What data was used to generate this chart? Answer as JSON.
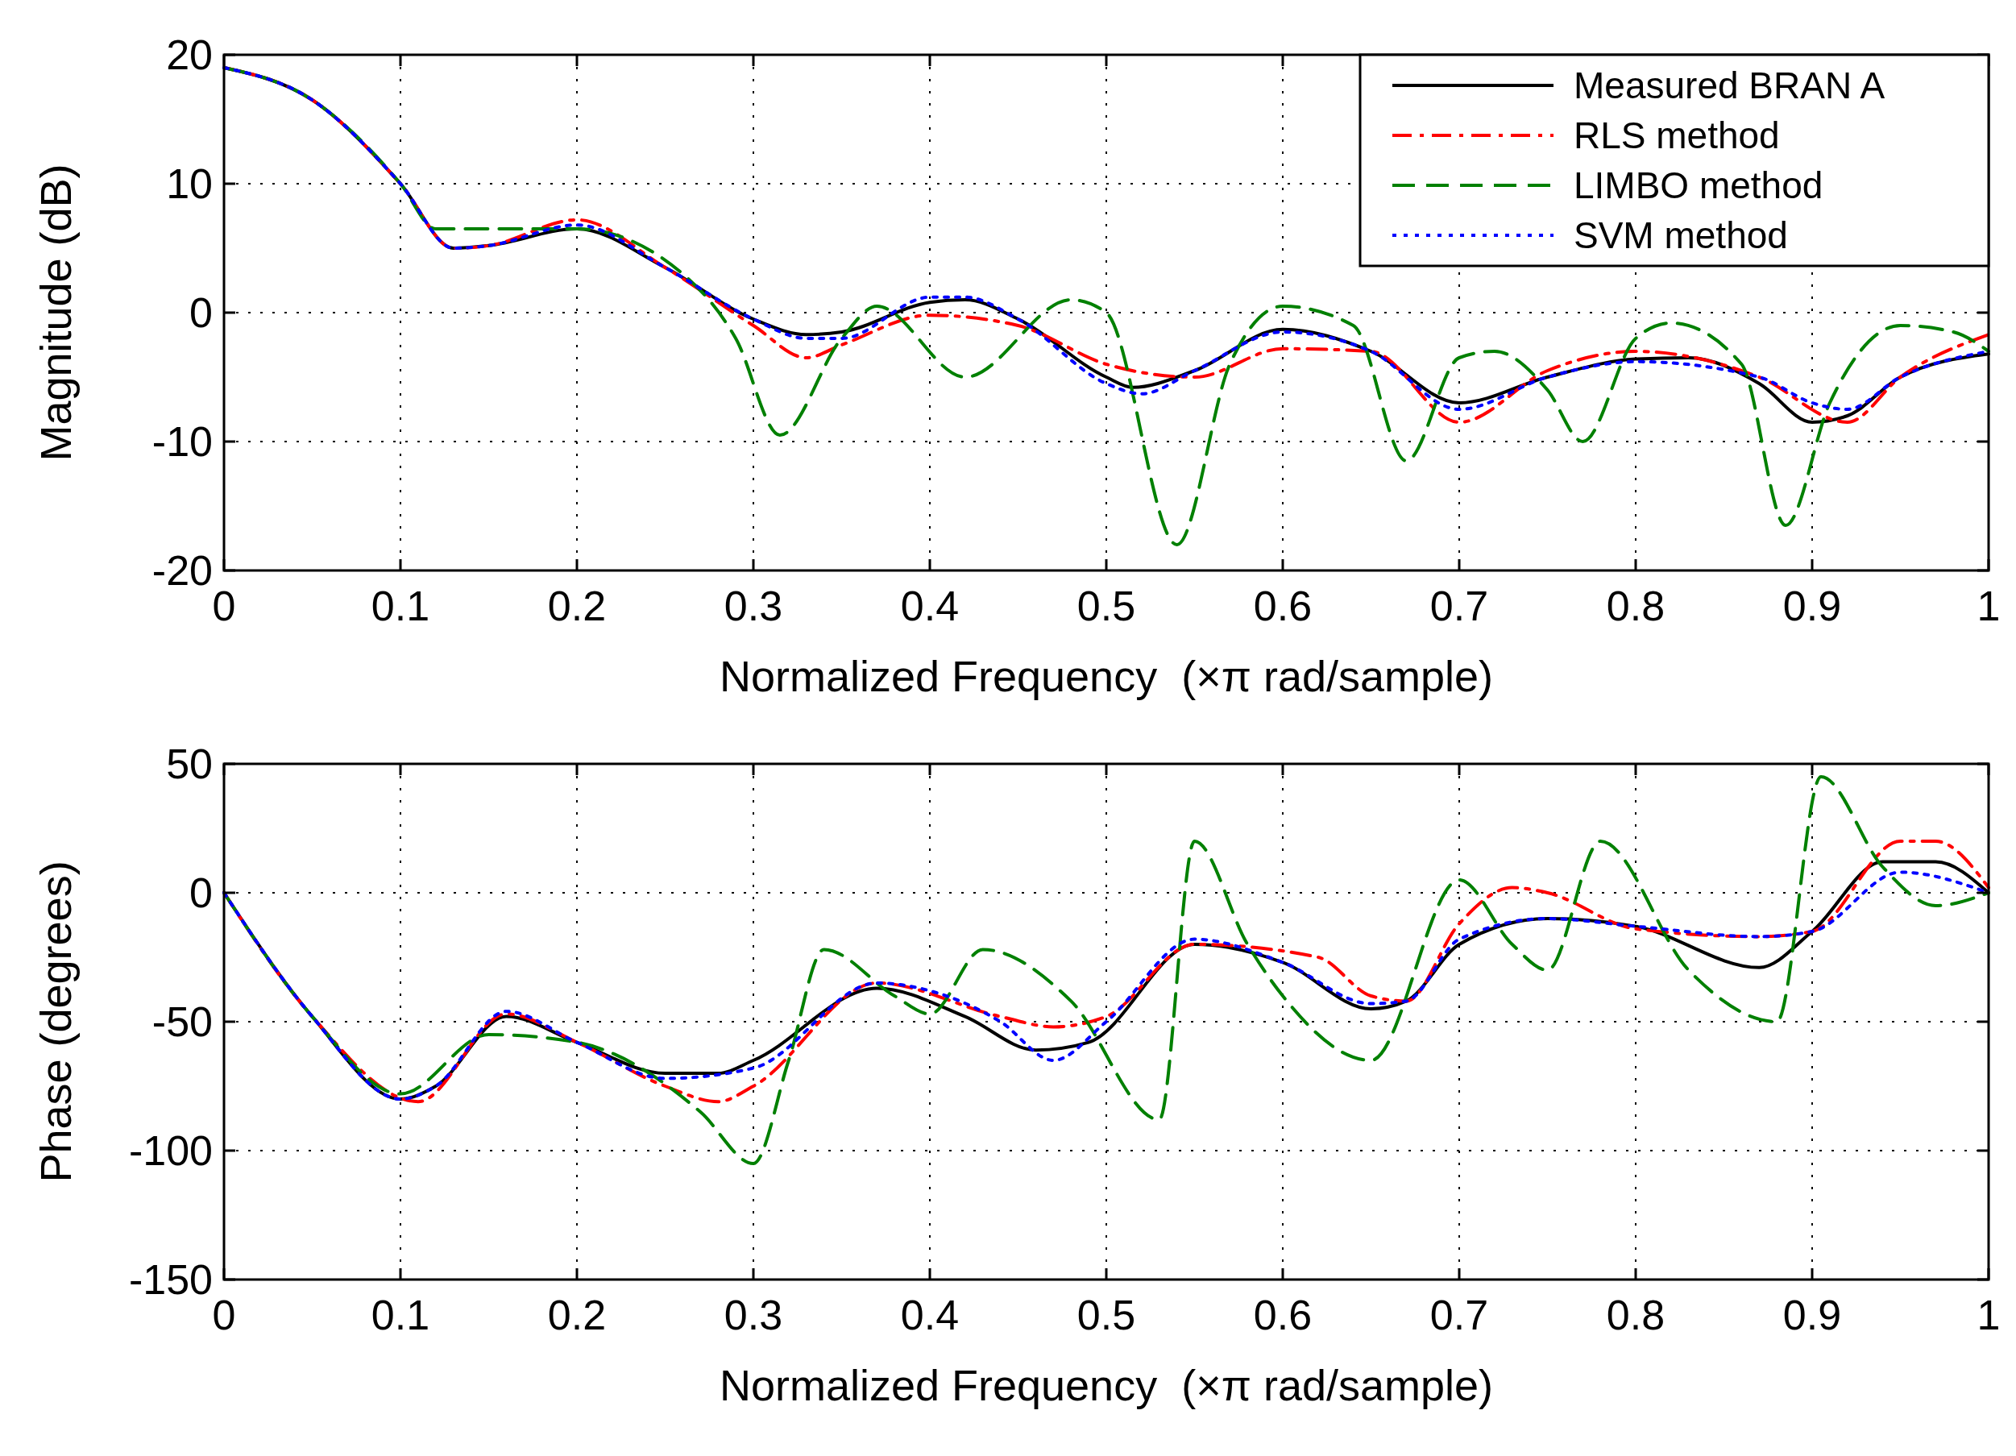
{
  "chart_data": [
    {
      "type": "line",
      "xlabel": "Normalized Frequency  (×π rad/sample)",
      "ylabel": "Magnitude (dB)",
      "xlim": [
        0,
        1
      ],
      "ylim": [
        -20,
        20
      ],
      "xticks": [
        0,
        0.1,
        0.2,
        0.3,
        0.4,
        0.5,
        0.6,
        0.7,
        0.8,
        0.9,
        1
      ],
      "yticks": [
        -20,
        -10,
        0,
        10,
        20
      ],
      "grid": true,
      "legend": "top right",
      "series": [
        {
          "name": "Measured BRAN A",
          "color": "#000000",
          "line_style": "solid",
          "x": [
            0,
            0.05,
            0.1,
            0.13,
            0.15,
            0.2,
            0.25,
            0.3,
            0.33,
            0.35,
            0.4,
            0.42,
            0.45,
            0.5,
            0.515,
            0.55,
            0.6,
            0.65,
            0.7,
            0.75,
            0.8,
            0.83,
            0.87,
            0.9,
            0.92,
            0.95,
            1
          ],
          "values": [
            19,
            16.5,
            10,
            5,
            5.2,
            6.5,
            3.5,
            -0.5,
            -1.7,
            -1.5,
            0.8,
            1,
            -0.5,
            -5,
            -5.8,
            -4.5,
            -1.3,
            -3,
            -7,
            -5,
            -3.6,
            -3.5,
            -5.5,
            -8.5,
            -8,
            -5,
            -3.2
          ]
        },
        {
          "name": "RLS method",
          "color": "#ff0000",
          "line_style": "dashdot",
          "x": [
            0,
            0.05,
            0.1,
            0.13,
            0.15,
            0.2,
            0.25,
            0.3,
            0.33,
            0.35,
            0.4,
            0.45,
            0.5,
            0.55,
            0.6,
            0.65,
            0.7,
            0.75,
            0.8,
            0.87,
            0.92,
            0.95,
            1
          ],
          "values": [
            19,
            16.5,
            10,
            5,
            5.2,
            7.2,
            3.5,
            -1,
            -3.5,
            -2.5,
            -0.2,
            -1,
            -4,
            -5,
            -2.8,
            -3,
            -8.5,
            -4.5,
            -3,
            -5,
            -8.5,
            -5,
            -1.7
          ]
        },
        {
          "name": "LIMBO method",
          "color": "#008000",
          "line_style": "dashed",
          "x": [
            0,
            0.05,
            0.1,
            0.12,
            0.2,
            0.26,
            0.29,
            0.315,
            0.35,
            0.37,
            0.42,
            0.48,
            0.5,
            0.54,
            0.57,
            0.6,
            0.64,
            0.67,
            0.7,
            0.72,
            0.75,
            0.77,
            0.8,
            0.82,
            0.86,
            0.885,
            0.91,
            0.95,
            0.98,
            1
          ],
          "values": [
            19,
            16.5,
            10,
            6.5,
            6.5,
            3,
            -2,
            -9.5,
            -2,
            0.5,
            -5,
            1,
            0,
            -18,
            -4,
            0.5,
            -1,
            -11.5,
            -3.5,
            -3,
            -6,
            -10,
            -2,
            -0.8,
            -4,
            -16.5,
            -7,
            -1,
            -1.5,
            -3
          ]
        },
        {
          "name": "SVM method",
          "color": "#0000ff",
          "line_style": "dotted",
          "x": [
            0,
            0.05,
            0.1,
            0.13,
            0.15,
            0.2,
            0.25,
            0.3,
            0.33,
            0.35,
            0.4,
            0.42,
            0.45,
            0.5,
            0.52,
            0.55,
            0.6,
            0.65,
            0.7,
            0.75,
            0.8,
            0.87,
            0.9,
            0.92,
            0.95,
            1
          ],
          "values": [
            19,
            16.5,
            10,
            5,
            5.2,
            6.8,
            3.5,
            -0.5,
            -2,
            -2,
            1.2,
            1.2,
            -0.5,
            -5.5,
            -6.3,
            -4.5,
            -1.5,
            -3,
            -7.5,
            -5,
            -3.8,
            -5,
            -7,
            -7.5,
            -5,
            -3
          ]
        }
      ]
    },
    {
      "type": "line",
      "xlabel": "Normalized Frequency  (×π rad/sample)",
      "ylabel": "Phase (degrees)",
      "xlim": [
        0,
        1
      ],
      "ylim": [
        -150,
        50
      ],
      "xticks": [
        0,
        0.1,
        0.2,
        0.3,
        0.4,
        0.5,
        0.6,
        0.7,
        0.8,
        0.9,
        1
      ],
      "yticks": [
        -150,
        -100,
        -50,
        0,
        50
      ],
      "grid": true,
      "series": [
        {
          "color": "#000000",
          "line_style": "solid",
          "x": [
            0,
            0.05,
            0.1,
            0.12,
            0.16,
            0.2,
            0.25,
            0.28,
            0.3,
            0.37,
            0.42,
            0.46,
            0.49,
            0.55,
            0.6,
            0.65,
            0.67,
            0.7,
            0.75,
            0.8,
            0.87,
            0.9,
            0.94,
            0.97,
            1
          ],
          "values": [
            0,
            -48,
            -80,
            -75,
            -48,
            -58,
            -70,
            -70,
            -65,
            -37,
            -48,
            -61,
            -58,
            -20,
            -27,
            -45,
            -42,
            -20,
            -10,
            -13,
            -29,
            -15,
            12,
            12,
            0
          ]
        },
        {
          "color": "#ff0000",
          "line_style": "dashdot",
          "x": [
            0,
            0.05,
            0.11,
            0.16,
            0.2,
            0.25,
            0.28,
            0.3,
            0.37,
            0.44,
            0.47,
            0.5,
            0.55,
            0.62,
            0.65,
            0.67,
            0.7,
            0.73,
            0.75,
            0.8,
            0.87,
            0.9,
            0.95,
            0.97,
            1
          ],
          "values": [
            0,
            -48,
            -81,
            -47,
            -58,
            -75,
            -81,
            -75,
            -35,
            -48,
            -52,
            -48,
            -20,
            -25,
            -40,
            -42,
            -12,
            2,
            0,
            -14,
            -17,
            -15,
            20,
            20,
            2
          ]
        },
        {
          "color": "#008000",
          "line_style": "dashed",
          "x": [
            0,
            0.05,
            0.1,
            0.15,
            0.2,
            0.27,
            0.3,
            0.32,
            0.34,
            0.38,
            0.4,
            0.43,
            0.48,
            0.53,
            0.55,
            0.58,
            0.6,
            0.65,
            0.7,
            0.73,
            0.75,
            0.78,
            0.83,
            0.88,
            0.905,
            0.94,
            0.97,
            1
          ],
          "values": [
            0,
            -48,
            -78,
            -55,
            -58,
            -85,
            -105,
            -65,
            -22,
            -40,
            -47,
            -22,
            -42,
            -88,
            20,
            -20,
            -40,
            -65,
            5,
            -20,
            -30,
            20,
            -30,
            -50,
            45,
            10,
            -5,
            0
          ]
        },
        {
          "color": "#0000ff",
          "line_style": "dotted",
          "x": [
            0,
            0.05,
            0.1,
            0.12,
            0.16,
            0.2,
            0.25,
            0.3,
            0.37,
            0.4,
            0.44,
            0.47,
            0.5,
            0.55,
            0.6,
            0.65,
            0.67,
            0.7,
            0.75,
            0.8,
            0.87,
            0.9,
            0.95,
            1
          ],
          "values": [
            0,
            -48,
            -80,
            -75,
            -46,
            -58,
            -72,
            -68,
            -35,
            -38,
            -50,
            -65,
            -50,
            -18,
            -27,
            -43,
            -42,
            -18,
            -10,
            -13,
            -17,
            -15,
            8,
            0
          ]
        }
      ]
    }
  ]
}
